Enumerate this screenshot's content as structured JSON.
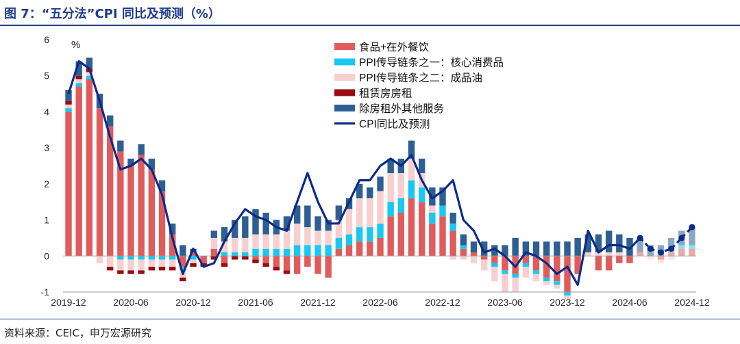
{
  "figure": {
    "title": "图 7：“五分法”CPI 同比及预测（%）",
    "source": "资料来源：CEIC，申万宏源研究"
  },
  "colors": {
    "title_blue": "#1f3c88",
    "food": "#e05c5c",
    "ppi_core": "#19c8f0",
    "ppi_oil": "#f8cfcf",
    "rent": "#9b0b12",
    "services": "#2e5f93",
    "cpi_line": "#0d2b87"
  },
  "chart_data": {
    "type": "bar",
    "stacked": true,
    "y_unit_label": "%",
    "ylim": [
      -1,
      6
    ],
    "yticks": [
      -1,
      0,
      1,
      2,
      3,
      4,
      5,
      6
    ],
    "grid": false,
    "legend_position": "top-right",
    "x_tick_labels": [
      "2019-12",
      "2020-06",
      "2020-12",
      "2021-06",
      "2021-12",
      "2022-06",
      "2022-12",
      "2023-06",
      "2023-12",
      "2024-06",
      "2024-12"
    ],
    "x_tick_index": [
      0,
      6,
      12,
      18,
      24,
      30,
      36,
      42,
      48,
      54,
      60
    ],
    "categories": [
      "2019-12",
      "2020-01",
      "2020-02",
      "2020-03",
      "2020-04",
      "2020-05",
      "2020-06",
      "2020-07",
      "2020-08",
      "2020-09",
      "2020-10",
      "2020-11",
      "2020-12",
      "2021-01",
      "2021-02",
      "2021-03",
      "2021-04",
      "2021-05",
      "2021-06",
      "2021-07",
      "2021-08",
      "2021-09",
      "2021-10",
      "2021-11",
      "2021-12",
      "2022-01",
      "2022-02",
      "2022-03",
      "2022-04",
      "2022-05",
      "2022-06",
      "2022-07",
      "2022-08",
      "2022-09",
      "2022-10",
      "2022-11",
      "2022-12",
      "2023-01",
      "2023-02",
      "2023-03",
      "2023-04",
      "2023-05",
      "2023-06",
      "2023-07",
      "2023-08",
      "2023-09",
      "2023-10",
      "2023-11",
      "2023-12",
      "2024-01",
      "2024-02",
      "2024-03",
      "2024-04",
      "2024-05",
      "2024-06",
      "2024-07",
      "2024-08",
      "2024-09",
      "2024-10",
      "2024-11",
      "2024-12"
    ],
    "forecast_start_index": 55,
    "series": [
      {
        "name": "食品+在外餐饮",
        "key": "food",
        "kind": "bar",
        "values": [
          4.0,
          4.7,
          4.9,
          4.1,
          3.6,
          2.9,
          2.5,
          2.8,
          2.4,
          1.8,
          0.6,
          -0.3,
          0.1,
          -0.2,
          0.2,
          -0.2,
          0.0,
          0.0,
          -0.1,
          -0.2,
          -0.3,
          -0.4,
          -0.5,
          -0.3,
          -0.5,
          -0.6,
          0.2,
          0.3,
          0.4,
          0.4,
          0.5,
          1.1,
          1.2,
          1.6,
          1.5,
          0.9,
          1.1,
          0.7,
          0.2,
          0.1,
          -0.1,
          -0.2,
          -0.4,
          -0.5,
          -0.2,
          -0.4,
          -0.6,
          -0.7,
          -1.0,
          -0.5,
          0.0,
          -0.4,
          -0.4,
          -0.2,
          -0.2,
          0.1,
          0.0,
          -0.1,
          0.1,
          0.2,
          0.2
        ]
      },
      {
        "name": "PPI传导链条之一：核心消费品",
        "key": "ppi_core",
        "kind": "bar",
        "values": [
          0.1,
          0.1,
          0.1,
          0.0,
          0.0,
          -0.1,
          -0.1,
          -0.1,
          -0.1,
          -0.1,
          -0.1,
          -0.1,
          -0.1,
          0.0,
          0.0,
          0.1,
          0.1,
          0.1,
          0.2,
          0.2,
          0.2,
          0.2,
          0.3,
          0.3,
          0.3,
          0.3,
          0.3,
          0.3,
          0.4,
          0.4,
          0.4,
          0.4,
          0.4,
          0.5,
          0.4,
          0.3,
          0.3,
          0.2,
          0.1,
          0.0,
          0.0,
          -0.1,
          -0.1,
          -0.1,
          -0.1,
          -0.1,
          -0.1,
          -0.1,
          -0.1,
          0.0,
          0.0,
          0.0,
          0.0,
          0.0,
          0.0,
          0.0,
          0.0,
          0.0,
          0.1,
          0.1,
          0.1
        ]
      },
      {
        "name": "PPI传导链条之二：成品油",
        "key": "ppi_oil",
        "kind": "bar",
        "values": [
          0.1,
          0.1,
          0.1,
          -0.2,
          -0.3,
          -0.3,
          -0.3,
          -0.3,
          -0.2,
          -0.2,
          -0.2,
          -0.2,
          -0.1,
          0.0,
          0.3,
          0.3,
          0.4,
          0.4,
          0.4,
          0.4,
          0.4,
          0.5,
          0.6,
          0.5,
          0.4,
          0.4,
          0.5,
          0.7,
          0.8,
          0.8,
          0.9,
          0.8,
          0.7,
          0.6,
          0.4,
          0.2,
          0.0,
          -0.1,
          -0.1,
          -0.2,
          -0.3,
          -0.4,
          -0.5,
          -0.4,
          -0.3,
          -0.2,
          -0.1,
          -0.1,
          -0.1,
          0.0,
          0.1,
          0.1,
          0.1,
          0.1,
          0.0,
          0.0,
          -0.1,
          -0.1,
          -0.1,
          0.0,
          0.0
        ]
      },
      {
        "name": "租赁房房租",
        "key": "rent",
        "kind": "bar",
        "values": [
          0.1,
          0.1,
          0.1,
          0.0,
          -0.1,
          -0.1,
          -0.1,
          -0.1,
          -0.1,
          -0.1,
          -0.1,
          -0.1,
          -0.1,
          -0.1,
          -0.1,
          -0.1,
          -0.1,
          -0.1,
          -0.1,
          -0.1,
          -0.1,
          -0.1,
          0.0,
          0.0,
          0.0,
          0.0,
          0.0,
          0.0,
          0.0,
          0.0,
          0.0,
          0.0,
          0.0,
          0.0,
          0.0,
          0.0,
          0.0,
          0.0,
          0.0,
          0.0,
          0.0,
          0.0,
          0.0,
          0.0,
          0.0,
          0.0,
          0.0,
          0.0,
          0.0,
          0.0,
          0.0,
          0.0,
          0.0,
          0.0,
          0.0,
          0.0,
          0.0,
          0.0,
          0.0,
          0.0,
          0.0
        ]
      },
      {
        "name": "除房租外其他服务",
        "key": "services",
        "kind": "bar",
        "values": [
          0.3,
          0.4,
          0.3,
          0.4,
          0.3,
          0.3,
          0.2,
          0.3,
          0.3,
          0.3,
          0.3,
          0.3,
          0.1,
          0.0,
          0.2,
          0.4,
          0.5,
          0.6,
          0.7,
          0.6,
          0.4,
          0.4,
          0.5,
          0.6,
          0.4,
          0.3,
          0.4,
          0.3,
          0.4,
          0.3,
          0.4,
          0.4,
          0.4,
          0.5,
          0.4,
          0.5,
          0.5,
          0.3,
          0.3,
          0.3,
          0.4,
          0.3,
          0.3,
          0.5,
          0.4,
          0.4,
          0.4,
          0.4,
          0.4,
          0.5,
          0.5,
          0.5,
          0.6,
          0.5,
          0.5,
          0.4,
          0.3,
          0.3,
          0.3,
          0.4,
          0.5
        ]
      },
      {
        "name": "CPI同比及预测",
        "key": "cpi_line",
        "kind": "line",
        "values": [
          4.5,
          5.4,
          5.2,
          4.3,
          3.3,
          2.4,
          2.5,
          2.7,
          2.4,
          1.7,
          0.5,
          -0.5,
          0.2,
          -0.3,
          -0.2,
          0.4,
          0.9,
          1.3,
          1.1,
          1.0,
          0.8,
          0.7,
          1.5,
          2.3,
          1.5,
          0.9,
          0.9,
          1.5,
          2.1,
          2.1,
          2.5,
          2.7,
          2.5,
          2.8,
          2.1,
          1.6,
          1.8,
          2.1,
          1.0,
          0.7,
          0.1,
          0.2,
          0.0,
          -0.3,
          0.1,
          0.0,
          -0.2,
          -0.5,
          -0.3,
          -0.8,
          0.7,
          0.1,
          0.3,
          0.3,
          0.2,
          0.5,
          0.2,
          0.1,
          0.2,
          0.5,
          0.8
        ]
      }
    ]
  }
}
